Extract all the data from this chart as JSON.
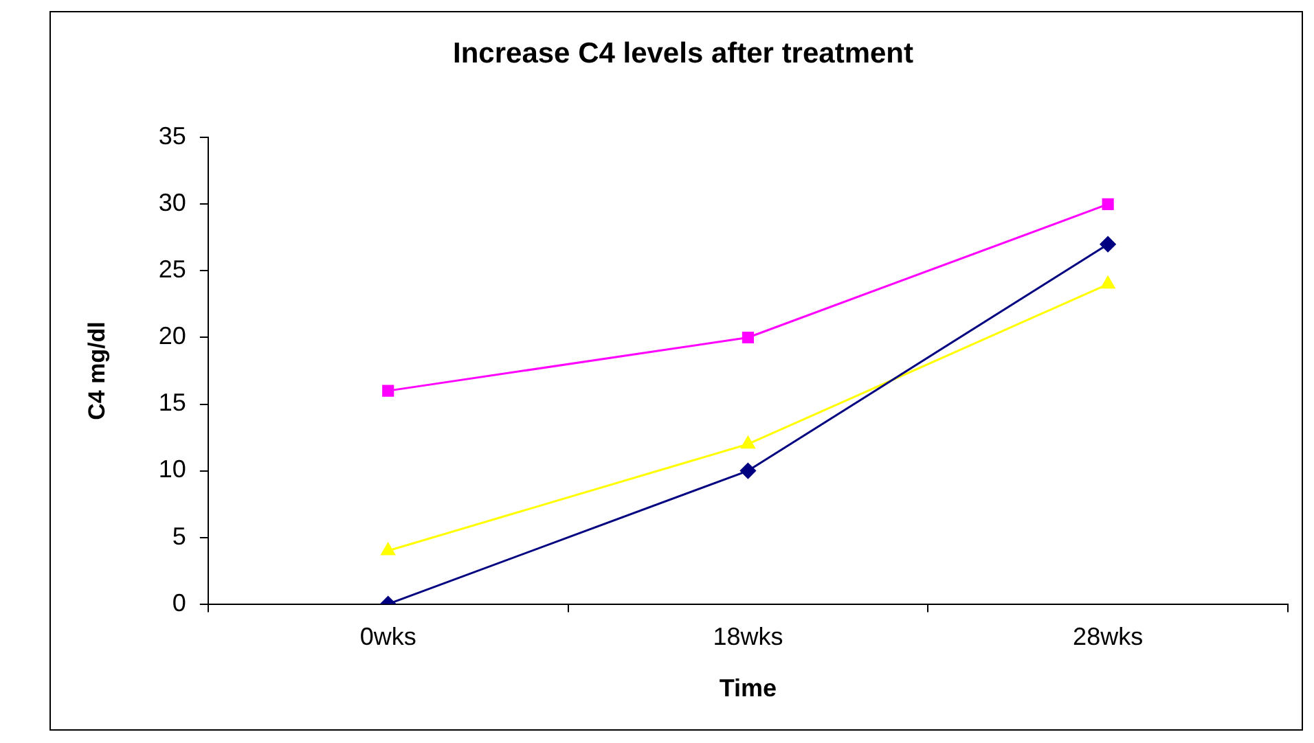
{
  "chart_data": {
    "type": "line",
    "title": "Increase C4 levels after treatment",
    "xlabel": "Time",
    "ylabel": "C4 mg/dl",
    "categories": [
      "0wks",
      "18wks",
      "28wks"
    ],
    "series": [
      {
        "color": "#000080",
        "marker": "diamond",
        "values": [
          0,
          10,
          27
        ]
      },
      {
        "color": "#ff00ff",
        "marker": "square",
        "values": [
          16,
          20,
          30
        ]
      },
      {
        "color": "#ffff00",
        "marker": "triangle",
        "values": [
          4,
          12,
          24
        ]
      }
    ],
    "ylim": [
      0,
      35
    ],
    "yticks": [
      0,
      5,
      10,
      15,
      20,
      25,
      30,
      35
    ],
    "grid": false,
    "legend": false
  }
}
